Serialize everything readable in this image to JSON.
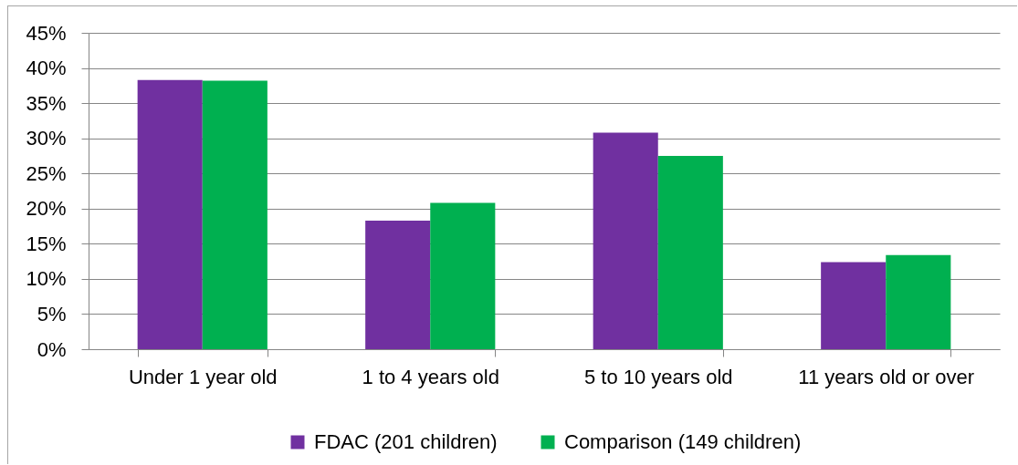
{
  "chart_data": {
    "type": "bar",
    "categories": [
      "Under 1 year old",
      "1 to 4 years old",
      "5 to 10 years old",
      "11 years old or over"
    ],
    "series": [
      {
        "name": "FDAC (201 children)",
        "color": "#7030a0",
        "values": [
          38.3,
          18.3,
          30.8,
          12.4
        ]
      },
      {
        "name": "Comparison (149 children)",
        "color": "#00b050",
        "values": [
          38.2,
          20.8,
          27.5,
          13.4
        ]
      }
    ],
    "ylim": [
      0,
      45
    ],
    "yticks": [
      {
        "value": 0,
        "label": "0%"
      },
      {
        "value": 5,
        "label": "5%"
      },
      {
        "value": 10,
        "label": "10%"
      },
      {
        "value": 15,
        "label": "15%"
      },
      {
        "value": 20,
        "label": "20%"
      },
      {
        "value": 25,
        "label": "25%"
      },
      {
        "value": 30,
        "label": "30%"
      },
      {
        "value": 35,
        "label": "35%"
      },
      {
        "value": 40,
        "label": "40%"
      },
      {
        "value": 45,
        "label": "45%"
      }
    ],
    "grid": "y",
    "legend": "bottom"
  }
}
